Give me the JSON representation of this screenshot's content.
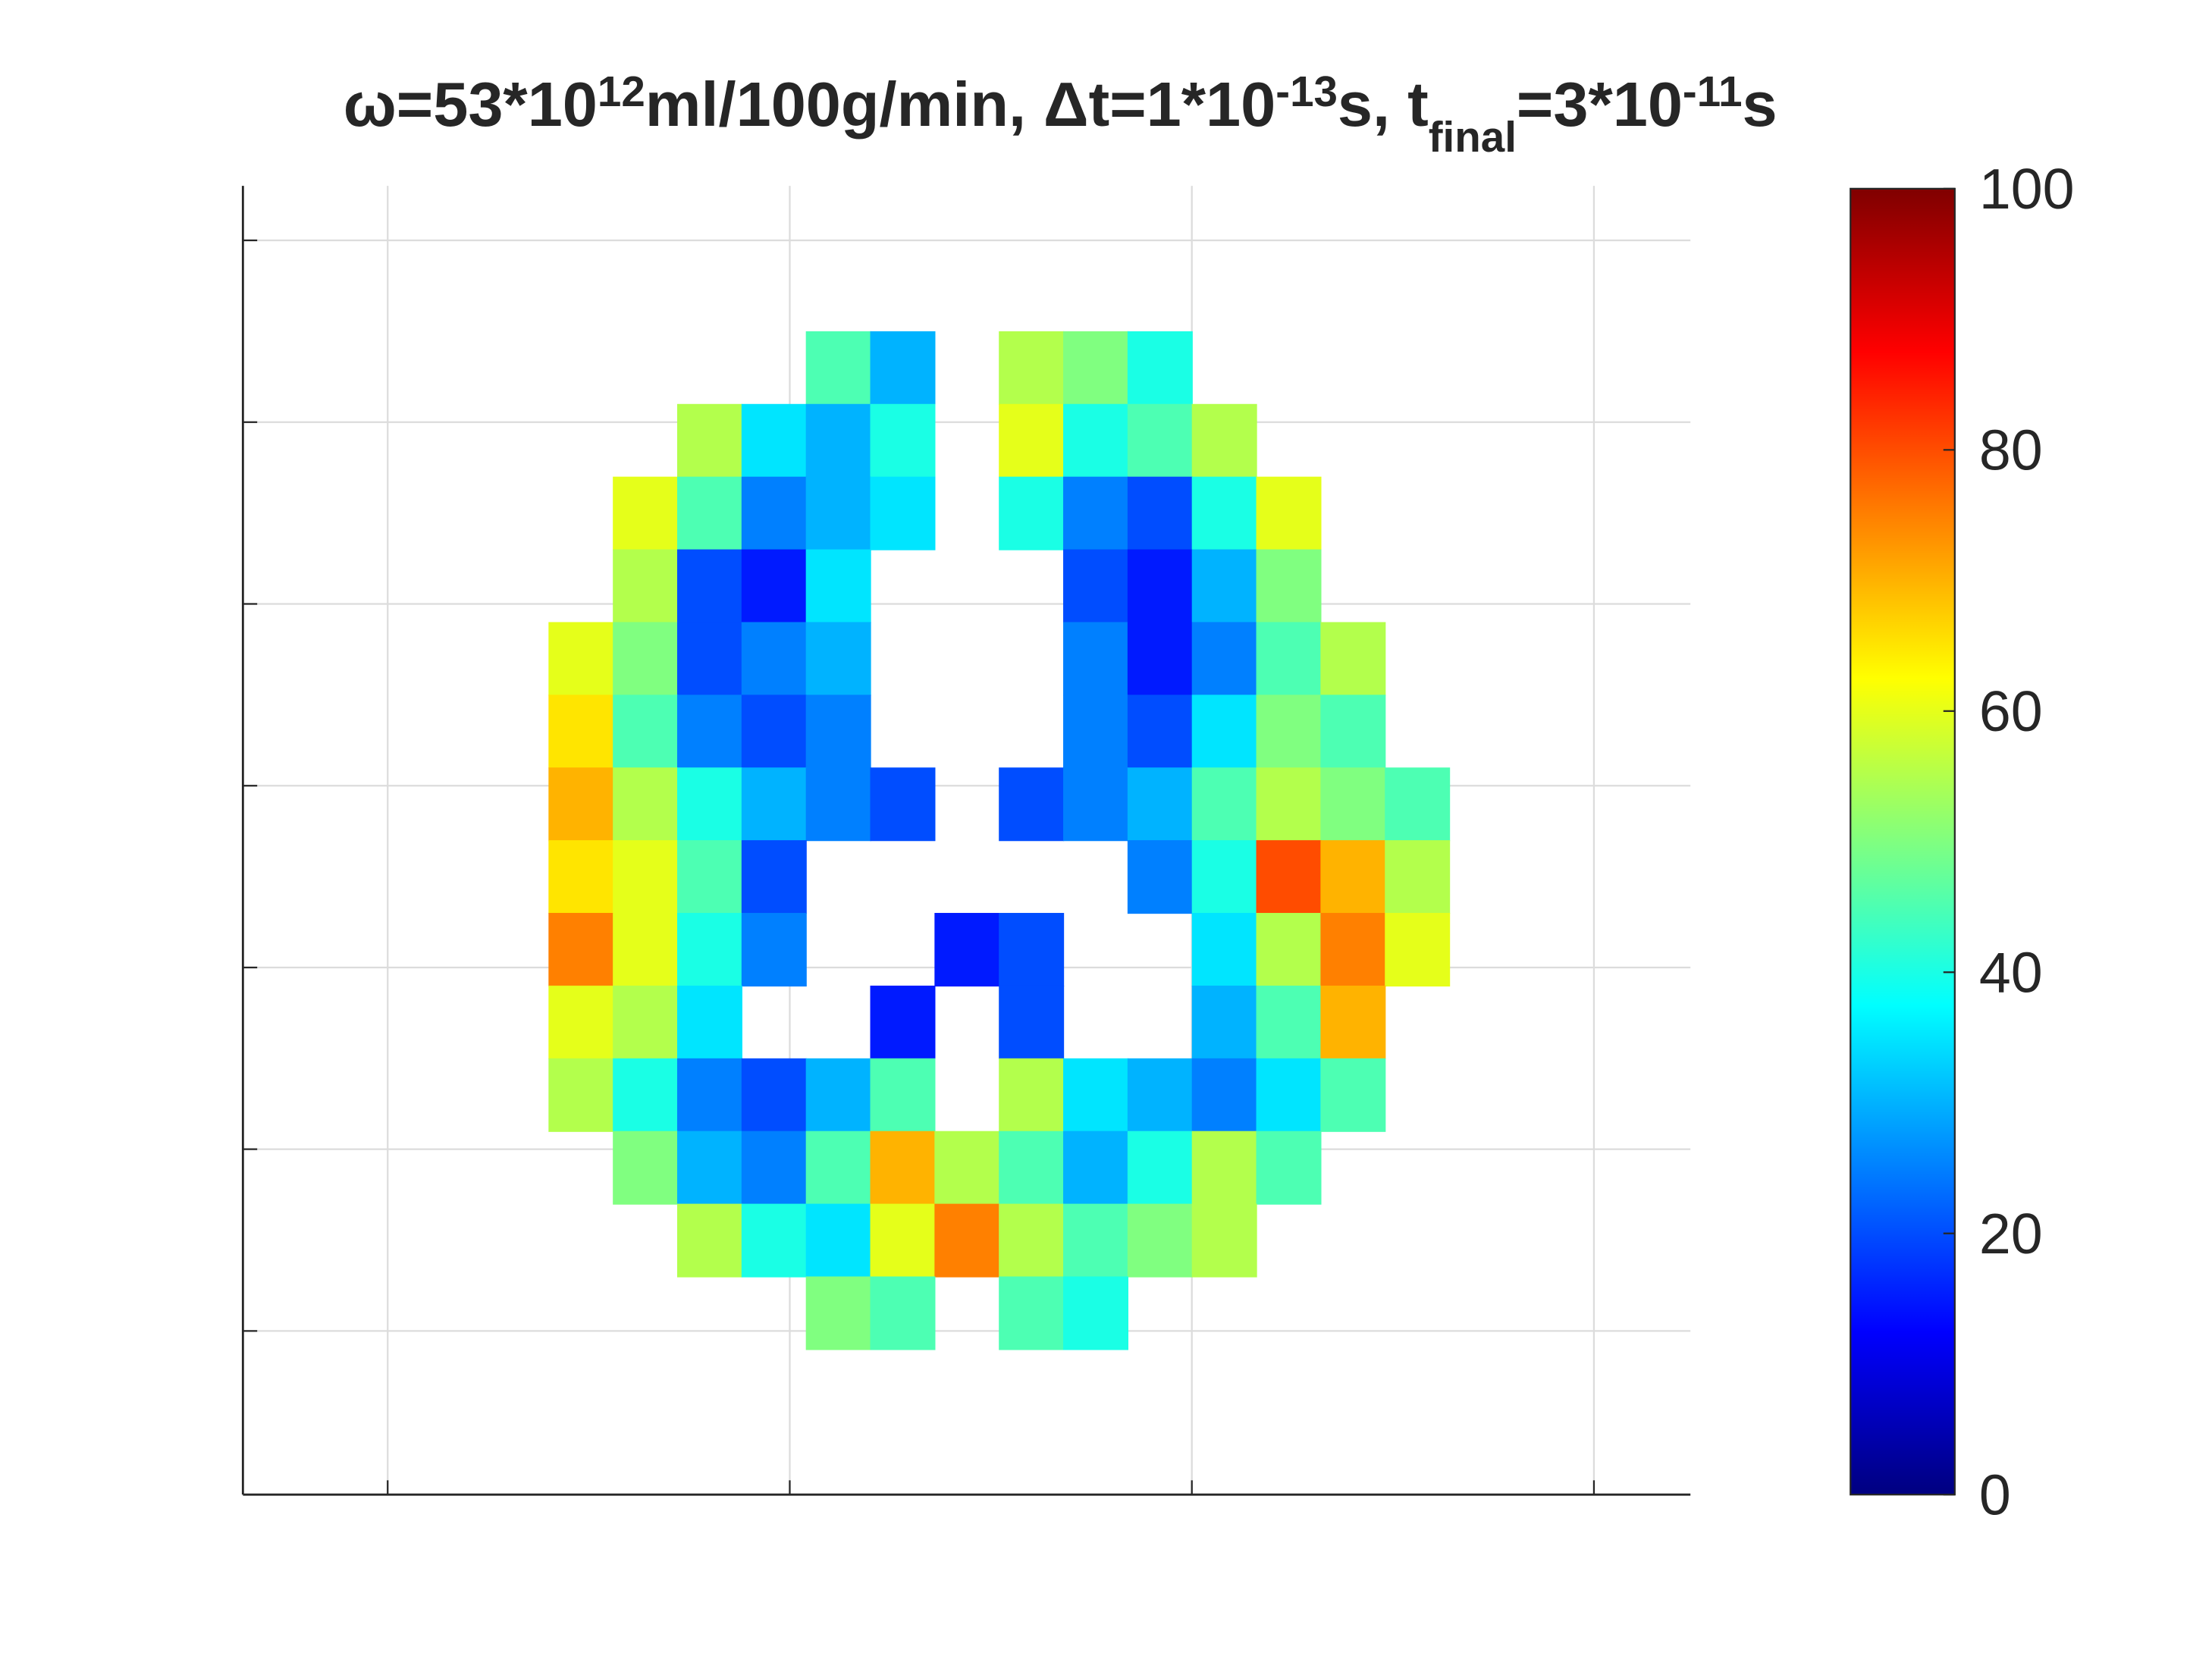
{
  "chart_data": {
    "type": "heatmap",
    "title": [
      {
        "text": "ω=53*10"
      },
      {
        "text": "12",
        "shift": "sup"
      },
      {
        "text": "ml/100g/min, Δt=1*10"
      },
      {
        "text": "-13",
        "shift": "sup"
      },
      {
        "text": "s, t"
      },
      {
        "text": "final",
        "shift": "sub"
      },
      {
        "text": "=3*10"
      },
      {
        "text": "-11",
        "shift": "sup"
      },
      {
        "text": "s"
      }
    ],
    "x": [
      74,
      82,
      90,
      98,
      106,
      114,
      122,
      130,
      138,
      146,
      154,
      162,
      170,
      178
    ],
    "y": [
      34,
      42,
      50,
      58,
      66,
      74,
      82,
      90,
      98,
      106,
      114,
      122,
      130,
      138
    ],
    "values": [
      [
        null,
        null,
        null,
        null,
        45,
        30,
        null,
        55,
        50,
        40,
        null,
        null,
        null,
        null
      ],
      [
        null,
        null,
        55,
        35,
        30,
        40,
        null,
        60,
        40,
        45,
        55,
        null,
        null,
        null
      ],
      [
        null,
        60,
        45,
        25,
        30,
        35,
        null,
        40,
        25,
        20,
        40,
        60,
        null,
        null
      ],
      [
        null,
        55,
        20,
        15,
        35,
        null,
        null,
        null,
        20,
        15,
        30,
        50,
        null,
        null
      ],
      [
        60,
        50,
        20,
        25,
        30,
        null,
        null,
        null,
        25,
        15,
        25,
        45,
        55,
        null
      ],
      [
        65,
        45,
        25,
        20,
        25,
        null,
        null,
        null,
        25,
        20,
        35,
        50,
        45,
        null
      ],
      [
        70,
        55,
        40,
        30,
        25,
        20,
        null,
        20,
        25,
        30,
        45,
        55,
        50,
        45
      ],
      [
        65,
        60,
        45,
        20,
        null,
        null,
        null,
        null,
        null,
        25,
        40,
        80,
        70,
        55
      ],
      [
        75,
        60,
        40,
        25,
        null,
        null,
        15,
        20,
        null,
        null,
        35,
        55,
        75,
        60
      ],
      [
        60,
        55,
        35,
        null,
        null,
        15,
        null,
        20,
        null,
        null,
        30,
        45,
        70,
        null
      ],
      [
        55,
        40,
        25,
        20,
        30,
        45,
        null,
        55,
        35,
        30,
        25,
        35,
        45,
        null
      ],
      [
        null,
        50,
        30,
        25,
        45,
        70,
        55,
        45,
        30,
        40,
        55,
        45,
        null,
        null
      ],
      [
        null,
        null,
        55,
        40,
        35,
        60,
        75,
        55,
        45,
        50,
        55,
        null,
        null,
        null
      ],
      [
        null,
        null,
        null,
        null,
        50,
        45,
        null,
        45,
        40,
        null,
        null,
        null,
        null,
        null
      ]
    ],
    "xlim": [
      32,
      212
    ],
    "xticks": [
      50,
      100,
      150,
      200
    ],
    "ylim": [
      14,
      158
    ],
    "yticks": [
      20,
      40,
      60,
      80,
      100,
      120,
      140
    ],
    "y_reversed": true,
    "grid": true,
    "colormap": "jet",
    "clim": [
      0,
      100
    ],
    "cticks": [
      0,
      20,
      40,
      60,
      80,
      100
    ]
  }
}
